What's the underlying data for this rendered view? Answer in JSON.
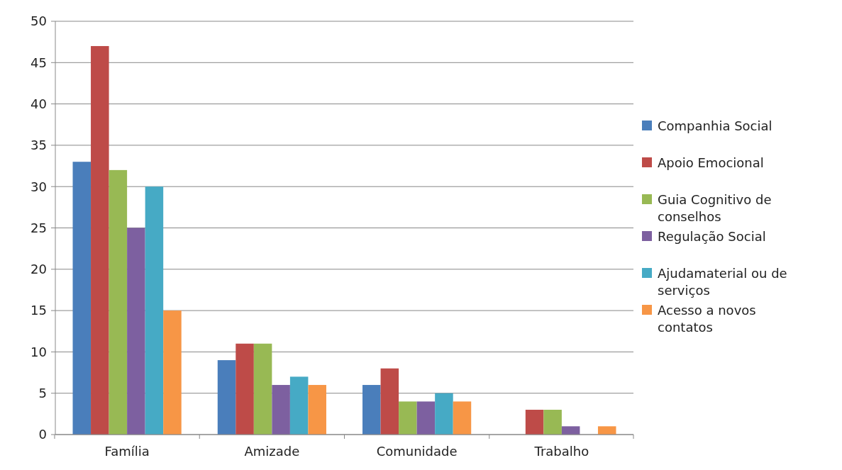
{
  "chart_data": {
    "type": "bar",
    "categories": [
      "Família",
      "Amizade",
      "Comunidade",
      "Trabalho"
    ],
    "series": [
      {
        "name": "Companhia Social",
        "color": "#4a7ebb",
        "values": [
          33,
          9,
          6,
          0
        ]
      },
      {
        "name": "Apoio Emocional",
        "color": "#be4b48",
        "values": [
          47,
          11,
          8,
          3
        ]
      },
      {
        "name": "Guia Cognitivo de conselhos",
        "color": "#98b954",
        "values": [
          32,
          11,
          4,
          3
        ]
      },
      {
        "name": "Regulação Social",
        "color": "#7d60a0",
        "values": [
          25,
          6,
          4,
          1
        ]
      },
      {
        "name": "Ajudamaterial ou de serviços",
        "color": "#46aac5",
        "values": [
          30,
          7,
          5,
          0
        ]
      },
      {
        "name": "Acesso a novos contatos",
        "color": "#f79646",
        "values": [
          15,
          6,
          4,
          1
        ]
      }
    ],
    "ylim": [
      0,
      50
    ],
    "yticks": [
      0,
      5,
      10,
      15,
      20,
      25,
      30,
      35,
      40,
      45,
      50
    ],
    "grid": "y",
    "legend": "right"
  }
}
